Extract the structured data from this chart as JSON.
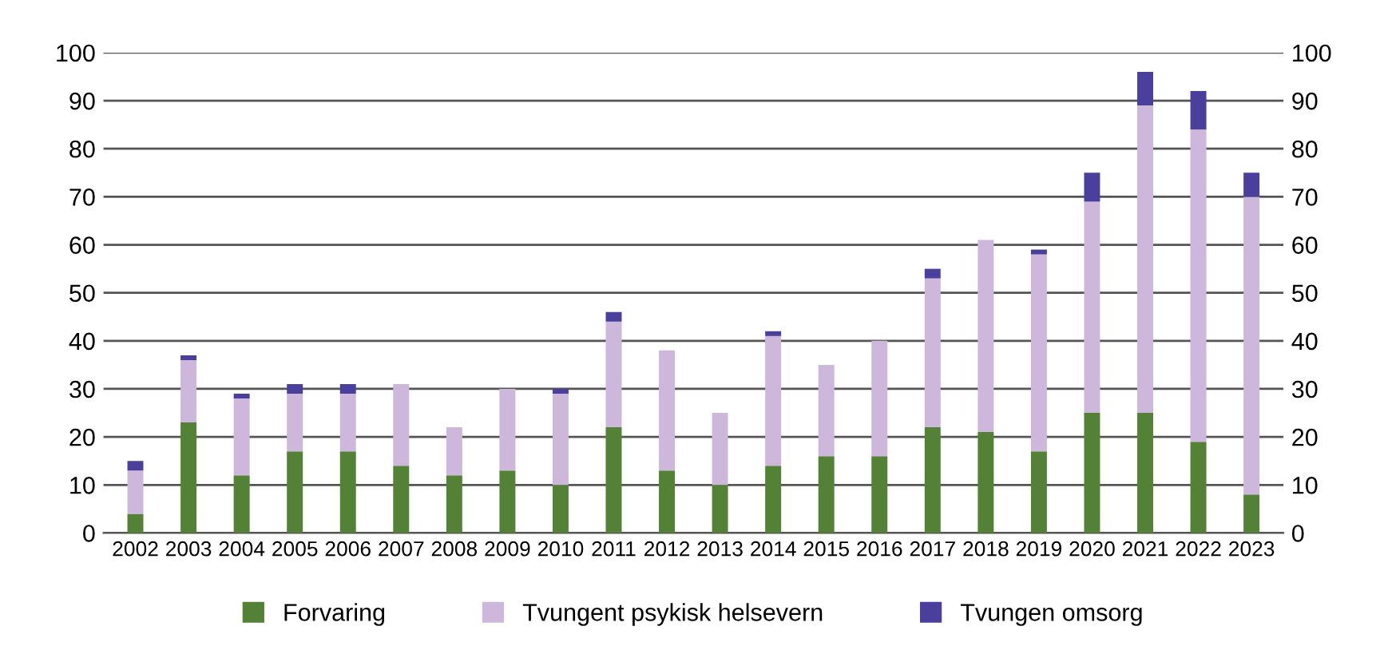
{
  "chart_data": {
    "type": "bar",
    "stacked": true,
    "categories": [
      "2002",
      "2003",
      "2004",
      "2005",
      "2006",
      "2007",
      "2008",
      "2009",
      "2010",
      "2011",
      "2012",
      "2013",
      "2014",
      "2015",
      "2016",
      "2017",
      "2018",
      "2019",
      "2020",
      "2021",
      "2022",
      "2023"
    ],
    "series": [
      {
        "name": "Forvaring",
        "color": "#538135",
        "values": [
          4,
          23,
          12,
          17,
          17,
          14,
          12,
          13,
          10,
          22,
          13,
          10,
          14,
          16,
          16,
          22,
          21,
          17,
          25,
          25,
          19,
          8
        ]
      },
      {
        "name": "Tvungent psykisk helsevern",
        "color": "#cdb8dc",
        "values": [
          9,
          13,
          16,
          12,
          12,
          17,
          10,
          17,
          19,
          22,
          25,
          15,
          27,
          19,
          24,
          31,
          40,
          41,
          44,
          64,
          65,
          62
        ]
      },
      {
        "name": "Tvungen omsorg",
        "color": "#4b3f9e",
        "values": [
          2,
          1,
          1,
          2,
          2,
          0,
          0,
          0,
          1,
          2,
          0,
          0,
          1,
          0,
          0,
          2,
          0,
          1,
          6,
          7,
          8,
          5
        ]
      }
    ],
    "ylim": [
      0,
      100
    ],
    "yticks": [
      0,
      10,
      20,
      30,
      40,
      50,
      60,
      70,
      80,
      90,
      100
    ],
    "y2lim": [
      0,
      100
    ],
    "y2ticks": [
      0,
      10,
      20,
      30,
      40,
      50,
      60,
      70,
      80,
      90,
      100
    ],
    "grid": "y",
    "legend": "bottom"
  }
}
